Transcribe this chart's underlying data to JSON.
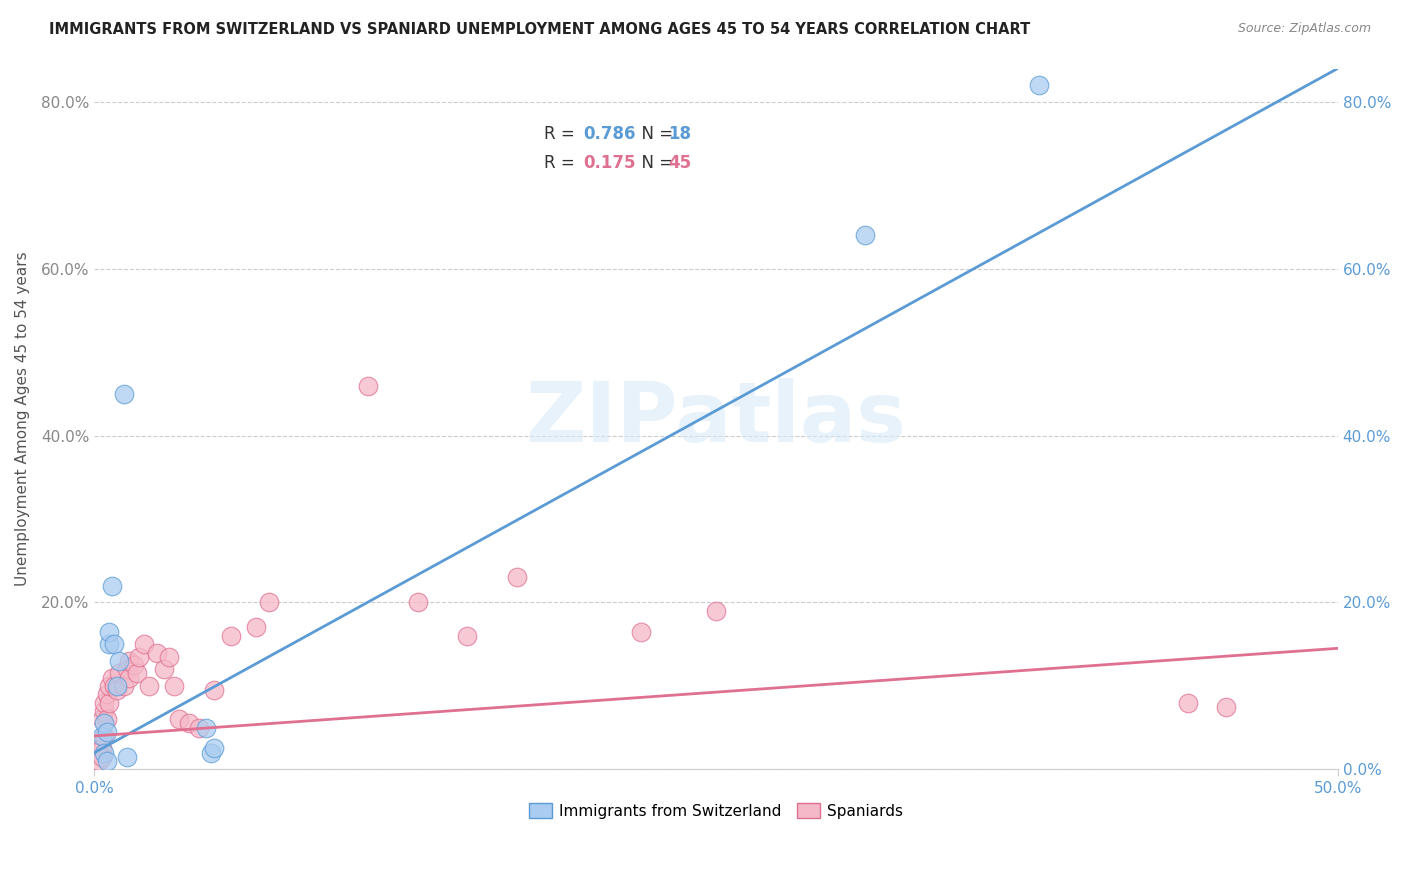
{
  "title": "IMMIGRANTS FROM SWITZERLAND VS SPANIARD UNEMPLOYMENT AMONG AGES 45 TO 54 YEARS CORRELATION CHART",
  "source": "Source: ZipAtlas.com",
  "ylabel": "Unemployment Among Ages 45 to 54 years",
  "xlim": [
    0.0,
    0.5
  ],
  "ylim": [
    0.0,
    0.84
  ],
  "xtick_vals": [
    0.0,
    0.5
  ],
  "xtick_labels": [
    "0.0%",
    "50.0%"
  ],
  "ytick_vals": [
    0.0,
    0.2,
    0.4,
    0.6,
    0.8
  ],
  "ytick_labels": [
    "",
    "20.0%",
    "40.0%",
    "60.0%",
    "80.0%"
  ],
  "ytick_labels_right": [
    "0.0%",
    "20.0%",
    "40.0%",
    "60.0%",
    "80.0%"
  ],
  "background_color": "#ffffff",
  "grid_color": "#cccccc",
  "blue_fill": "#aaccf0",
  "blue_edge": "#5b9bd5",
  "pink_fill": "#f5b8c8",
  "pink_edge": "#e07090",
  "blue_line_color": "#5b9bd5",
  "pink_line_color": "#e07090",
  "legend_R1": "0.786",
  "legend_N1": "18",
  "legend_R2": "0.175",
  "legend_N2": "45",
  "watermark": "ZIPatlas",
  "swiss_points_x": [
    0.003,
    0.004,
    0.004,
    0.005,
    0.005,
    0.006,
    0.006,
    0.007,
    0.008,
    0.009,
    0.01,
    0.012,
    0.013,
    0.045,
    0.047,
    0.048,
    0.31,
    0.38
  ],
  "swiss_points_y": [
    0.04,
    0.055,
    0.02,
    0.01,
    0.045,
    0.15,
    0.165,
    0.22,
    0.15,
    0.1,
    0.13,
    0.45,
    0.015,
    0.05,
    0.02,
    0.025,
    0.64,
    0.82
  ],
  "spain_points_x": [
    0.001,
    0.002,
    0.002,
    0.003,
    0.003,
    0.003,
    0.004,
    0.004,
    0.004,
    0.005,
    0.005,
    0.006,
    0.006,
    0.007,
    0.008,
    0.009,
    0.01,
    0.012,
    0.013,
    0.014,
    0.014,
    0.016,
    0.017,
    0.018,
    0.02,
    0.022,
    0.025,
    0.028,
    0.03,
    0.032,
    0.034,
    0.038,
    0.042,
    0.048,
    0.055,
    0.065,
    0.07,
    0.11,
    0.13,
    0.15,
    0.17,
    0.22,
    0.25,
    0.44,
    0.455
  ],
  "spain_points_y": [
    0.02,
    0.01,
    0.03,
    0.025,
    0.015,
    0.06,
    0.04,
    0.07,
    0.08,
    0.06,
    0.09,
    0.08,
    0.1,
    0.11,
    0.1,
    0.095,
    0.115,
    0.1,
    0.12,
    0.11,
    0.13,
    0.125,
    0.115,
    0.135,
    0.15,
    0.1,
    0.14,
    0.12,
    0.135,
    0.1,
    0.06,
    0.055,
    0.05,
    0.095,
    0.16,
    0.17,
    0.2,
    0.46,
    0.2,
    0.16,
    0.23,
    0.165,
    0.19,
    0.08,
    0.075
  ],
  "blue_line_x": [
    0.0,
    0.5
  ],
  "blue_line_y": [
    0.02,
    0.84
  ],
  "pink_line_x": [
    0.0,
    0.5
  ],
  "pink_line_y": [
    0.04,
    0.145
  ]
}
